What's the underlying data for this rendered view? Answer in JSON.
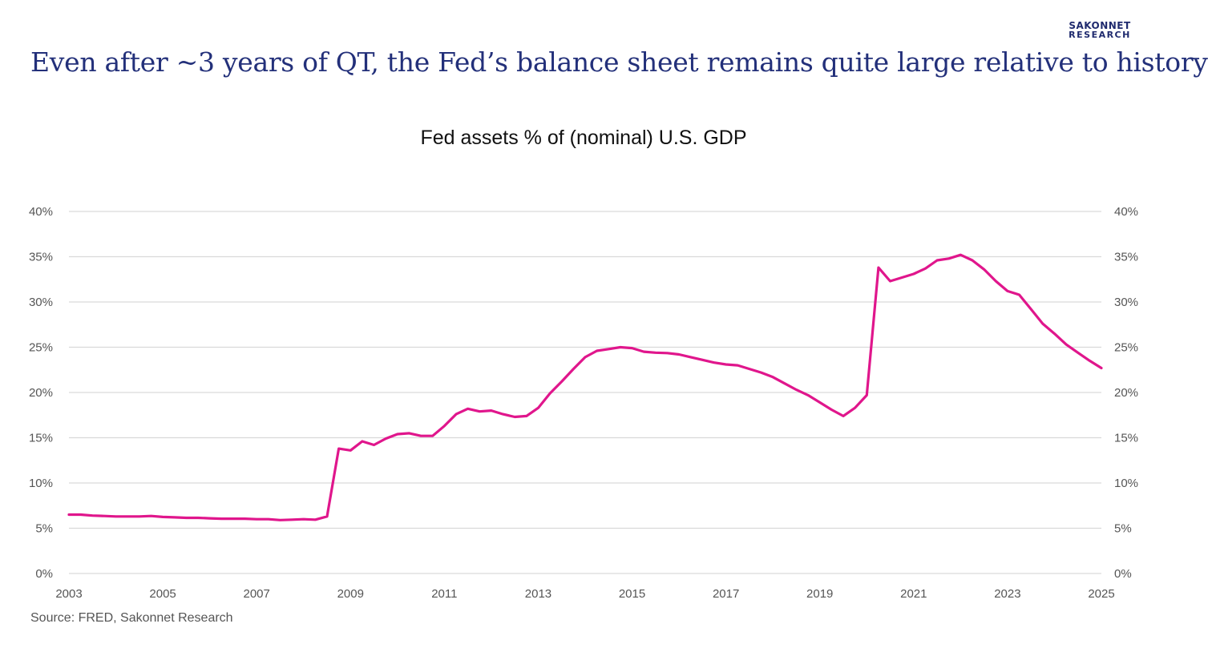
{
  "header": {
    "logo_line1": "SAKONNET",
    "logo_line2": "RESEARCH",
    "headline": "Even after ~3 years of QT, the Fed’s balance sheet remains quite large relative to history"
  },
  "footer": {
    "source": "Source: FRED, Sakonnet Research"
  },
  "colors": {
    "line": "#e0168c",
    "grid": "#d9d9d9",
    "headline": "#23307a"
  },
  "chart_data": {
    "type": "line",
    "title": "Fed assets % of (nominal) U.S. GDP",
    "xlabel": "",
    "ylabel": "",
    "xlim": [
      2003,
      2025
    ],
    "ylim": [
      0,
      40
    ],
    "x_ticks": [
      2003,
      2005,
      2007,
      2009,
      2011,
      2013,
      2015,
      2017,
      2019,
      2021,
      2023,
      2025
    ],
    "y_ticks": [
      0,
      5,
      10,
      15,
      20,
      25,
      30,
      35,
      40
    ],
    "y_tick_labels": [
      "0%",
      "5%",
      "10%",
      "15%",
      "20%",
      "25%",
      "30%",
      "35%",
      "40%"
    ],
    "dual_y_axis_labels": true,
    "grid": "horizontal",
    "legend": "none",
    "series": [
      {
        "x": [
          2003.0,
          2003.25,
          2003.5,
          2003.75,
          2004.0,
          2004.25,
          2004.5,
          2004.75,
          2005.0,
          2005.25,
          2005.5,
          2005.75,
          2006.0,
          2006.25,
          2006.5,
          2006.75,
          2007.0,
          2007.25,
          2007.5,
          2007.75,
          2008.0,
          2008.25,
          2008.5,
          2008.75,
          2009.0,
          2009.25,
          2009.5,
          2009.75,
          2010.0,
          2010.25,
          2010.5,
          2010.75,
          2011.0,
          2011.25,
          2011.5,
          2011.75,
          2012.0,
          2012.25,
          2012.5,
          2012.75,
          2013.0,
          2013.25,
          2013.5,
          2013.75,
          2014.0,
          2014.25,
          2014.5,
          2014.75,
          2015.0,
          2015.25,
          2015.5,
          2015.75,
          2016.0,
          2016.25,
          2016.5,
          2016.75,
          2017.0,
          2017.25,
          2017.5,
          2017.75,
          2018.0,
          2018.25,
          2018.5,
          2018.75,
          2019.0,
          2019.25,
          2019.5,
          2019.75,
          2020.0,
          2020.25,
          2020.5,
          2020.75,
          2021.0,
          2021.25,
          2021.5,
          2021.75,
          2022.0,
          2022.25,
          2022.5,
          2022.75,
          2023.0,
          2023.25,
          2023.5,
          2023.75,
          2024.0,
          2024.25,
          2024.5,
          2024.75,
          2025.0
        ],
        "y": [
          6.5,
          6.5,
          6.4,
          6.35,
          6.3,
          6.3,
          6.3,
          6.35,
          6.25,
          6.2,
          6.15,
          6.15,
          6.1,
          6.05,
          6.05,
          6.05,
          6.0,
          6.0,
          5.9,
          5.95,
          6.0,
          5.95,
          6.3,
          13.8,
          13.6,
          14.6,
          14.2,
          14.9,
          15.4,
          15.5,
          15.2,
          15.2,
          16.3,
          17.6,
          18.2,
          17.9,
          18.0,
          17.6,
          17.3,
          17.4,
          18.3,
          19.9,
          21.2,
          22.6,
          23.9,
          24.6,
          24.8,
          25.0,
          24.9,
          24.5,
          24.4,
          24.35,
          24.2,
          23.9,
          23.6,
          23.3,
          23.1,
          23.0,
          22.6,
          22.2,
          21.7,
          21.0,
          20.3,
          19.7,
          18.9,
          18.1,
          17.4,
          18.3,
          19.7,
          33.8,
          32.3,
          32.7,
          33.1,
          33.7,
          34.6,
          34.8,
          35.2,
          34.6,
          33.6,
          32.3,
          31.2,
          30.8,
          29.2,
          27.6,
          26.5,
          25.3,
          24.4,
          23.5,
          22.7
        ]
      }
    ]
  }
}
